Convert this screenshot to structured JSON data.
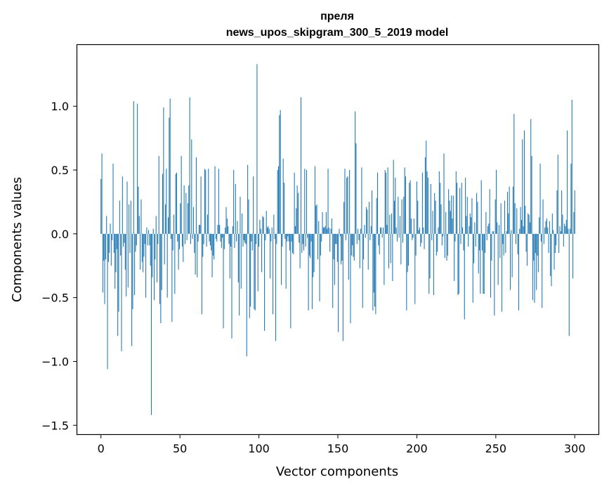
{
  "chart_data": {
    "type": "bar",
    "title_line1": "преля",
    "title_line2": "news_upos_skipgram_300_5_2019 model",
    "xlabel": "Vector components",
    "ylabel": "Components values",
    "xlim": [
      -15,
      315
    ],
    "ylim": [
      -1.57,
      1.48
    ],
    "xticks": [
      0,
      50,
      100,
      150,
      200,
      250,
      300
    ],
    "yticks": [
      -1.5,
      -1.0,
      -0.5,
      0.0,
      0.5,
      1.0
    ],
    "ytick_labels": [
      "−1.5",
      "−1.0",
      "−0.5",
      "0.0",
      "0.5",
      "1.0"
    ],
    "bar_color": "#1f77b4",
    "values": [
      0.43,
      0.63,
      -0.46,
      -0.21,
      -0.55,
      -0.2,
      0.14,
      -1.06,
      -0.22,
      -0.15,
      0.08,
      -0.25,
      -0.05,
      0.55,
      -0.15,
      -0.43,
      -0.3,
      -0.12,
      -0.8,
      -0.61,
      0.26,
      -0.17,
      -0.92,
      0.45,
      -0.1,
      -0.07,
      -0.28,
      -0.49,
      0.41,
      -0.42,
      0.23,
      -0.15,
      0.26,
      -0.88,
      -0.59,
      1.04,
      -0.48,
      -0.14,
      -0.09,
      1.02,
      0.37,
      0.14,
      -0.28,
      0.27,
      -0.22,
      -0.3,
      -0.18,
      -0.08,
      -0.5,
      0.05,
      -0.09,
      0.03,
      -0.09,
      -0.25,
      -1.42,
      -0.34,
      0.04,
      -0.52,
      -0.2,
      0.14,
      -0.38,
      -0.08,
      0.61,
      -0.55,
      -0.7,
      -0.44,
      0.47,
      0.99,
      -0.24,
      0.23,
      0.51,
      -0.5,
      0.13,
      0.91,
      1.06,
      -0.04,
      -0.69,
      -0.13,
      0.15,
      -0.47,
      0.47,
      0.48,
      -0.06,
      -0.28,
      -0.12,
      0.24,
      0.61,
      -0.1,
      -0.22,
      0.38,
      -0.08,
      0.32,
      -0.05,
      0.24,
      0.38,
      1.07,
      -0.08,
      0.74,
      -0.04,
      0.21,
      -0.15,
      -0.32,
      0.6,
      -0.34,
      -0.06,
      0.07,
      0.07,
      0.45,
      -0.63,
      -0.18,
      -0.08,
      0.51,
      0.5,
      -0.1,
      0.15,
      0.51,
      -0.06,
      -0.09,
      -0.13,
      -0.34,
      -0.17,
      -0.2,
      0.53,
      -0.04,
      -0.06,
      0.07,
      0.51,
      0.07,
      -0.06,
      -0.11,
      -0.03,
      -0.74,
      -0.12,
      0.05,
      0.21,
      0.12,
      0.06,
      -0.08,
      -0.35,
      -0.1,
      -0.82,
      0.06,
      0.5,
      -0.11,
      0.39,
      -0.06,
      0.1,
      -0.38,
      -0.64,
      0.29,
      -0.43,
      0.16,
      -0.1,
      -0.05,
      -0.07,
      -0.08,
      -0.96,
      0.54,
      0.27,
      -0.66,
      -0.57,
      -0.06,
      -0.13,
      0.45,
      -0.59,
      -0.6,
      -0.08,
      1.33,
      -0.45,
      -0.1,
      0.11,
      0.04,
      -0.3,
      0.14,
      0.13,
      -0.76,
      -0.05,
      0.18,
      0.05,
      0.06,
      0.04,
      -0.35,
      -0.06,
      0.05,
      -0.63,
      0.15,
      -0.04,
      -0.84,
      -0.08,
      0.5,
      0.53,
      0.93,
      0.97,
      -0.4,
      -0.1,
      0.59,
      0.4,
      -0.04,
      -0.43,
      -0.06,
      -0.02,
      -0.06,
      -0.13,
      -0.74,
      -0.06,
      -0.15,
      -0.16,
      0.48,
      0.06,
      0.2,
      0.38,
      0.32,
      -0.07,
      -0.27,
      1.07,
      -0.15,
      -0.08,
      -0.13,
      0.51,
      -0.1,
      0.5,
      -0.03,
      -0.6,
      -0.17,
      -0.19,
      -0.06,
      -0.59,
      -0.34,
      -0.3,
      0.53,
      0.22,
      0.23,
      -0.2,
      0.1,
      -0.53,
      -0.17,
      -0.06,
      0.17,
      0.05,
      0.05,
      0.06,
      0.17,
      0.04,
      0.51,
      0.05,
      -0.14,
      0.04,
      0.12,
      -0.58,
      -0.2,
      -0.4,
      -0.08,
      -0.08,
      -0.22,
      -0.77,
      0.04,
      -0.02,
      -0.24,
      -0.21,
      -0.84,
      0.25,
      0.51,
      -0.05,
      0.44,
      0.45,
      -0.36,
      0.5,
      -0.7,
      -0.17,
      -0.09,
      -0.18,
      -0.21,
      0.96,
      0.71,
      -0.08,
      0.04,
      -0.05,
      -0.27,
      0.04,
      0.52,
      -0.58,
      -0.2,
      0.07,
      -0.03,
      0.21,
      0.19,
      -0.28,
      0.25,
      -0.05,
      0.06,
      0.34,
      -0.6,
      -0.46,
      -0.57,
      -0.63,
      0.28,
      0.48,
      -0.09,
      -0.16,
      0.05,
      0.05,
      -0.03,
      0.05,
      -0.4,
      0.5,
      0.48,
      0.07,
      0.52,
      -0.27,
      0.15,
      -0.23,
      0.16,
      -0.37,
      0.58,
      0.26,
      0.44,
      0.05,
      -0.06,
      0.29,
      -0.03,
      0.14,
      -0.24,
      0.27,
      -0.07,
      0.29,
      0.52,
      0.45,
      -0.6,
      -0.3,
      -0.25,
      0.4,
      0.42,
      0.12,
      -0.05,
      -0.03,
      0.12,
      -0.55,
      -0.17,
      0.41,
      0.26,
      0.03,
      0.05,
      -0.1,
      -0.07,
      0.48,
      0.05,
      -0.12,
      0.6,
      0.73,
      0.49,
      0.44,
      -0.47,
      -0.35,
      0.39,
      -0.05,
      0.18,
      -0.48,
      0.32,
      0.26,
      -0.17,
      -0.14,
      0.05,
      0.49,
      0.4,
      0.23,
      -0.09,
      -0.02,
      0.63,
      -0.19,
      0.17,
      -0.21,
      -0.17,
      0.35,
      0.26,
      0.18,
      0.3,
      0.12,
      0.3,
      -0.37,
      -0.06,
      0.49,
      0.4,
      -0.48,
      -0.47,
      0.36,
      -0.08,
      0.4,
      0.05,
      -0.13,
      -0.67,
      0.44,
      0.14,
      0.29,
      -0.1,
      0.06,
      0.16,
      0.13,
      0.28,
      -0.54,
      -0.23,
      0.09,
      -0.1,
      0.32,
      0.25,
      -0.31,
      -0.13,
      -0.47,
      0.42,
      -0.13,
      -0.47,
      -0.47,
      -0.15,
      0.17,
      -0.05,
      0.06,
      0.08,
      0.35,
      -0.5,
      -0.21,
      0.02,
      0.02,
      -0.64,
      0.27,
      0.5,
      0.09,
      -0.4,
      0.07,
      -0.19,
      0.24,
      -0.61,
      -0.08,
      -0.17,
      0.26,
      -0.15,
      0.02,
      0.33,
      0.16,
      0.37,
      -0.44,
      0.03,
      -0.34,
      0.37,
      0.94,
      0.24,
      -0.08,
      0.2,
      -0.16,
      -0.6,
      0.04,
      0.21,
      0.11,
      0.74,
      0.06,
      0.81,
      0.22,
      -0.14,
      -0.25,
      0.16,
      0.15,
      0.09,
      0.9,
      0.61,
      -0.52,
      -0.21,
      -0.54,
      -0.15,
      -0.44,
      -0.17,
      -0.3,
      0.13,
      0.55,
      -0.06,
      -0.58,
      0.27,
      -0.08,
      0.05,
      0.1,
      0.12,
      0.05,
      -0.15,
      0.1,
      -0.33,
      -0.41,
      0.16,
      0.03,
      -0.28,
      -0.15,
      -0.09,
      0.34,
      0.62,
      -0.15,
      0.06,
      0.02,
      0.34,
      0.15,
      -0.1,
      0.08,
      0.06,
      0.11,
      0.81,
      0.04,
      -0.8,
      0.04,
      0.55,
      1.05,
      -0.35,
      0.17,
      0.34
    ]
  }
}
